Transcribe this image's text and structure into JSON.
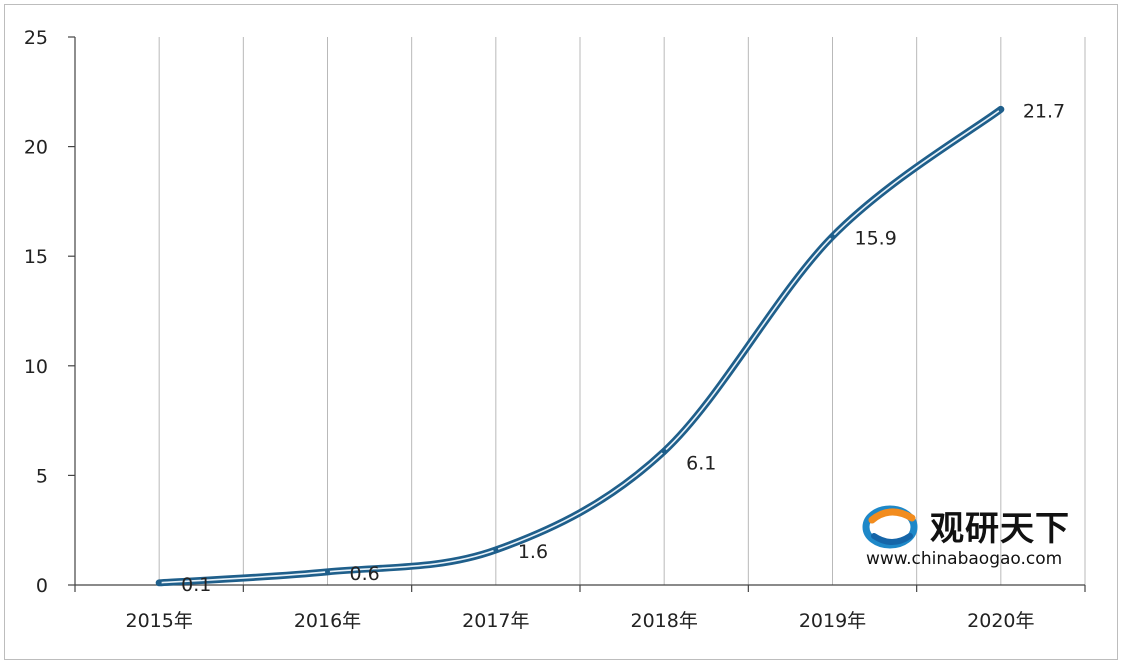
{
  "chart_data": {
    "type": "line",
    "categories": [
      "2015年",
      "2016年",
      "2017年",
      "2018年",
      "2019年",
      "2020年"
    ],
    "series": [
      {
        "values": [
          0.1,
          0.6,
          1.6,
          6.1,
          15.9,
          21.7
        ]
      }
    ],
    "data_labels": [
      "0.1",
      "0.6",
      "1.6",
      "6.1",
      "15.9",
      "21.7"
    ],
    "yticks": [
      "0",
      "5",
      "10",
      "15",
      "20",
      "25"
    ],
    "ylim": [
      0,
      25
    ],
    "grid": "vertical",
    "line_color": "#1f5f8b"
  },
  "watermark": {
    "name": "观研天下",
    "url": "www.chinabaogao.com"
  }
}
